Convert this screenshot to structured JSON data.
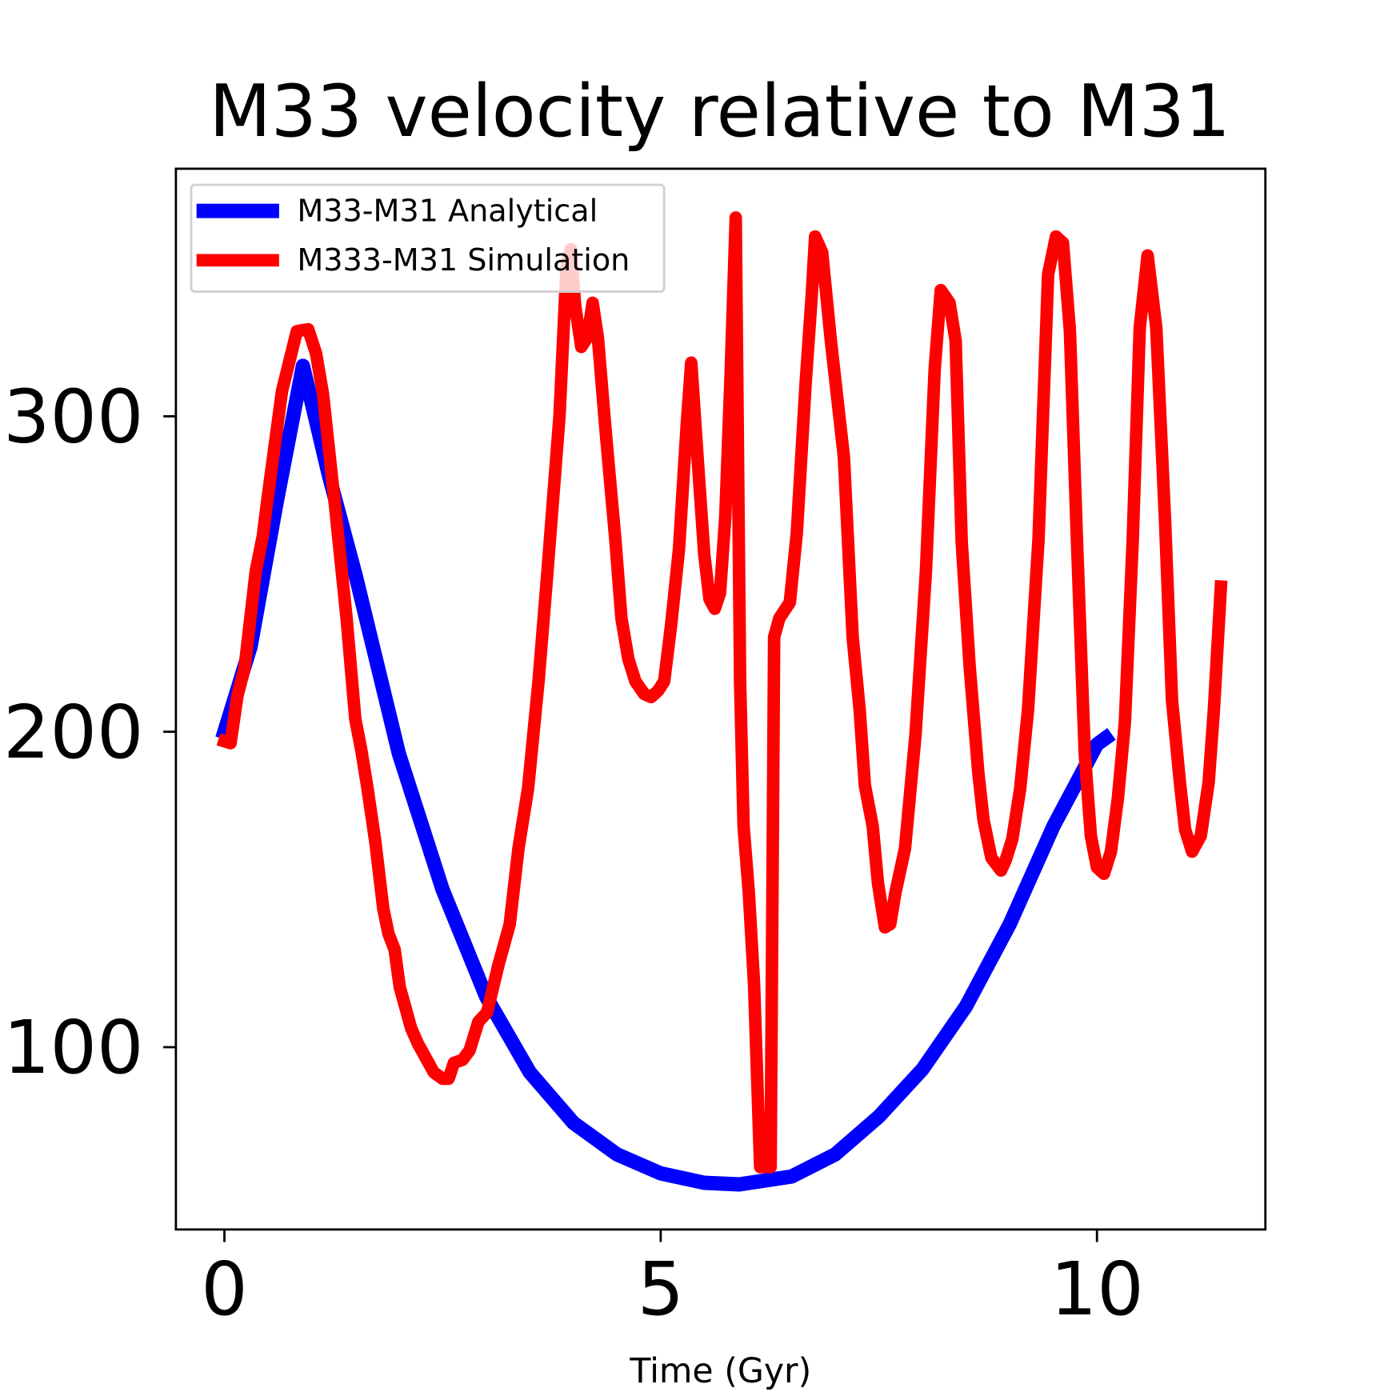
{
  "chart_data": {
    "type": "line",
    "title": "M33 velocity relative to M31",
    "x_label": "Time (Gyr)",
    "xlim": [
      -0.556,
      11.93
    ],
    "ylim": [
      42.2,
      378.5
    ],
    "xticks": [
      0,
      5,
      10
    ],
    "yticks": [
      100,
      200,
      300
    ],
    "grid": false,
    "legend": "upper left",
    "series": [
      {
        "name": "M33-M31 Analytical",
        "color": "#0000ff",
        "width": 16,
        "x": [
          0,
          0.3,
          0.6,
          0.9,
          1.2,
          1.5,
          2,
          2.5,
          3,
          3.5,
          4,
          4.5,
          5,
          5.5,
          5.9,
          6.5,
          7,
          7.5,
          8,
          8.5,
          9,
          9.5,
          10,
          10.1
        ],
        "values": [
          200,
          227,
          273,
          316,
          281,
          250,
          193,
          150,
          116,
          92,
          76,
          66,
          60,
          57,
          56.5,
          59,
          66,
          78,
          93,
          113,
          139,
          170,
          196,
          198
        ]
      },
      {
        "name": "M333-M31 Simulation",
        "color": "#ff0000",
        "width": 14,
        "x": [
          0,
          0.07,
          0.15,
          0.23,
          0.36,
          0.44,
          0.49,
          0.66,
          0.83,
          0.96,
          1.05,
          1.13,
          1.27,
          1.4,
          1.5,
          1.57,
          1.64,
          1.73,
          1.82,
          1.88,
          1.95,
          2.01,
          2.14,
          2.22,
          2.3,
          2.4,
          2.5,
          2.57,
          2.63,
          2.73,
          2.81,
          2.91,
          3.01,
          3.14,
          3.27,
          3.37,
          3.48,
          3.6,
          3.7,
          3.84,
          3.92,
          3.97,
          4.02,
          4.09,
          4.16,
          4.22,
          4.28,
          4.37,
          4.48,
          4.55,
          4.63,
          4.71,
          4.81,
          4.89,
          4.97,
          5.04,
          5.12,
          5.21,
          5.3,
          5.35,
          5.43,
          5.5,
          5.56,
          5.62,
          5.68,
          5.74,
          5.8,
          5.86,
          5.91,
          5.95,
          6.01,
          6.07,
          6.14,
          6.26,
          6.3,
          6.36,
          6.48,
          6.56,
          6.66,
          6.73,
          6.77,
          6.85,
          6.95,
          7.1,
          7.2,
          7.28,
          7.34,
          7.43,
          7.49,
          7.57,
          7.63,
          7.69,
          7.8,
          7.92,
          8.04,
          8.14,
          8.21,
          8.31,
          8.38,
          8.45,
          8.54,
          8.64,
          8.7,
          8.79,
          8.9,
          8.95,
          9.03,
          9.12,
          9.21,
          9.33,
          9.44,
          9.53,
          9.61,
          9.69,
          9.77,
          9.86,
          9.93,
          10,
          10.08,
          10.16,
          10.24,
          10.32,
          10.41,
          10.49,
          10.58,
          10.68,
          10.78,
          10.86,
          10.95,
          11.01,
          11.09,
          11.19,
          11.28,
          11.34,
          11.42
        ],
        "values": [
          197,
          196.4,
          211.5,
          220,
          251,
          262,
          273,
          308,
          327,
          327.6,
          320,
          307,
          271,
          236,
          204,
          194,
          182,
          165,
          144,
          136,
          131,
          119,
          106,
          101,
          97,
          92,
          90,
          90,
          95,
          96,
          99,
          108,
          111,
          126,
          139,
          163,
          182,
          216,
          250,
          300,
          347,
          353,
          335,
          322,
          325,
          336,
          325,
          295,
          261,
          236,
          223,
          216,
          212,
          211,
          213,
          216,
          234,
          258,
          298,
          317,
          284,
          256,
          242,
          239,
          244,
          268,
          312,
          363,
          216,
          170,
          149,
          120,
          62,
          62,
          230,
          236,
          241,
          263,
          310,
          338,
          357,
          352,
          324,
          287,
          230,
          207,
          183,
          170,
          152,
          138,
          139,
          149,
          163,
          199,
          251,
          315,
          340,
          336,
          324,
          260,
          221,
          187,
          172,
          160,
          156,
          159,
          166,
          182,
          207,
          261,
          345,
          357,
          355,
          327,
          261,
          193,
          167,
          157,
          155,
          162,
          179,
          203,
          261,
          328,
          351,
          328,
          267,
          210,
          184,
          169,
          162,
          167,
          184,
          207,
          246
        ]
      }
    ]
  }
}
